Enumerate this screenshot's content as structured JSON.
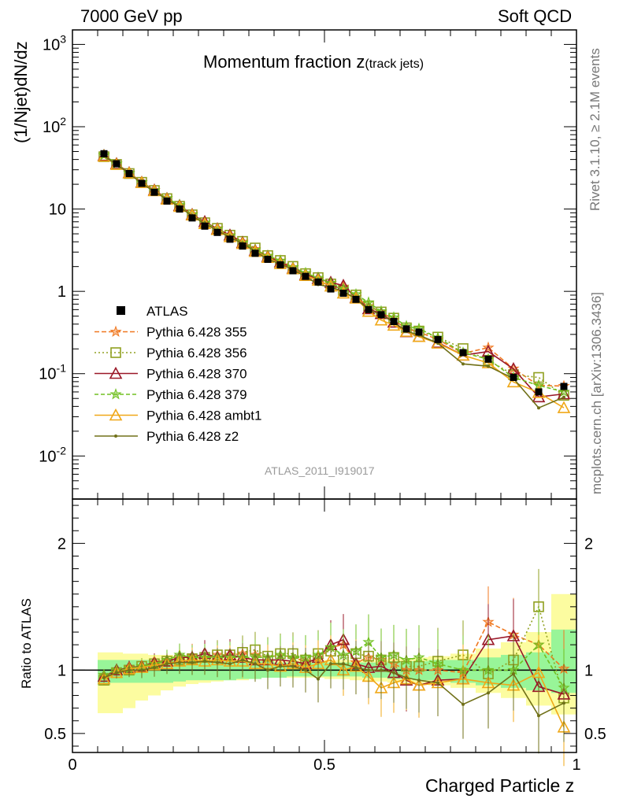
{
  "header": {
    "left": "7000 GeV pp",
    "right": "Soft QCD"
  },
  "side_text": {
    "rivet": "Rivet 3.1.10, ≥ 2.1M events",
    "mcplots": "mcplots.cern.ch [arXiv:1306.3436]"
  },
  "analysis_tag": "ATLAS_2011_I919017",
  "chart_data": {
    "type": "line",
    "title_main": "Momentum fraction z",
    "title_sub": "(track jets)",
    "ylabel": "(1/Njet)dN/dz",
    "ylabel_ratio": "Ratio to ATLAS",
    "xlabel": "Charged Particle z",
    "xlim": [
      0,
      1
    ],
    "ylim_main": [
      0.003,
      1500
    ],
    "ylim_ratio": [
      0.35,
      2.35
    ],
    "log_y_main": true,
    "x_ticks": [
      "0",
      "0.5",
      "1"
    ],
    "y_ticks_main": [
      "10^3",
      "10^2",
      "10",
      "1",
      "10^-1",
      "10^-2"
    ],
    "y_ticks_ratio": [
      "0.5",
      "1",
      "2"
    ],
    "legend_position": "bottom-left",
    "colors": {
      "data": "#000000",
      "band_inner": "#98f598",
      "band_outer": "#fcfca0"
    },
    "x": [
      0.0625,
      0.0875,
      0.1125,
      0.1375,
      0.1625,
      0.1875,
      0.2125,
      0.2375,
      0.2625,
      0.2875,
      0.3125,
      0.3375,
      0.3625,
      0.3875,
      0.4125,
      0.4375,
      0.4625,
      0.4875,
      0.5125,
      0.5375,
      0.5625,
      0.5875,
      0.6125,
      0.6375,
      0.6625,
      0.6875,
      0.725,
      0.775,
      0.825,
      0.875,
      0.925,
      0.975
    ],
    "data_values": [
      47,
      35.5,
      27,
      20.5,
      16,
      12.5,
      10,
      7.8,
      6.2,
      5.2,
      4.3,
      3.55,
      2.9,
      2.45,
      2.1,
      1.78,
      1.52,
      1.3,
      1.07,
      0.95,
      0.8,
      0.6,
      0.52,
      0.43,
      0.35,
      0.32,
      0.26,
      0.18,
      0.15,
      0.09,
      0.06,
      0.07
    ],
    "band_inner": [
      [
        0.88,
        1.08
      ],
      [
        0.9,
        1.08
      ],
      [
        0.9,
        1.08
      ],
      [
        0.9,
        1.08
      ],
      [
        0.9,
        1.08
      ],
      [
        0.9,
        1.08
      ],
      [
        0.91,
        1.08
      ],
      [
        0.92,
        1.08
      ],
      [
        0.92,
        1.08
      ],
      [
        0.92,
        1.08
      ],
      [
        0.92,
        1.07
      ],
      [
        0.93,
        1.07
      ],
      [
        0.93,
        1.07
      ],
      [
        0.94,
        1.07
      ],
      [
        0.94,
        1.06
      ],
      [
        0.95,
        1.06
      ],
      [
        0.95,
        1.06
      ],
      [
        0.95,
        1.06
      ],
      [
        0.95,
        1.06
      ],
      [
        0.95,
        1.06
      ],
      [
        0.95,
        1.06
      ],
      [
        0.94,
        1.06
      ],
      [
        0.94,
        1.06
      ],
      [
        0.93,
        1.07
      ],
      [
        0.93,
        1.07
      ],
      [
        0.92,
        1.07
      ],
      [
        0.92,
        1.08
      ],
      [
        0.9,
        1.08
      ],
      [
        0.88,
        1.1
      ],
      [
        0.86,
        1.12
      ],
      [
        0.84,
        1.14
      ],
      [
        0.82,
        1.32
      ]
    ],
    "band_outer": [
      [
        0.66,
        1.14
      ],
      [
        0.66,
        1.14
      ],
      [
        0.7,
        1.13
      ],
      [
        0.76,
        1.13
      ],
      [
        0.8,
        1.12
      ],
      [
        0.84,
        1.12
      ],
      [
        0.87,
        1.11
      ],
      [
        0.89,
        1.11
      ],
      [
        0.9,
        1.1
      ],
      [
        0.91,
        1.1
      ],
      [
        0.92,
        1.1
      ],
      [
        0.92,
        1.09
      ],
      [
        0.93,
        1.09
      ],
      [
        0.94,
        1.08
      ],
      [
        0.94,
        1.08
      ],
      [
        0.94,
        1.08
      ],
      [
        0.94,
        1.08
      ],
      [
        0.94,
        1.08
      ],
      [
        0.93,
        1.08
      ],
      [
        0.93,
        1.08
      ],
      [
        0.92,
        1.08
      ],
      [
        0.91,
        1.08
      ],
      [
        0.91,
        1.08
      ],
      [
        0.9,
        1.09
      ],
      [
        0.9,
        1.09
      ],
      [
        0.89,
        1.1
      ],
      [
        0.88,
        1.11
      ],
      [
        0.86,
        1.13
      ],
      [
        0.82,
        1.17
      ],
      [
        0.78,
        1.22
      ],
      [
        0.72,
        1.3
      ],
      [
        0.65,
        1.6
      ]
    ],
    "series": [
      {
        "name": "Pythia 6.428 355",
        "color": "#f07820",
        "dash": "6,3",
        "marker": "star",
        "ratio": [
          0.96,
          1.0,
          1.02,
          1.03,
          1.06,
          1.08,
          1.09,
          1.11,
          1.1,
          1.12,
          1.12,
          1.13,
          1.12,
          1.1,
          1.12,
          1.1,
          1.07,
          1.08,
          1.18,
          1.2,
          1.06,
          1.1,
          1.08,
          1.05,
          1.0,
          1.0,
          1.0,
          0.98,
          1.38,
          1.28,
          1.2,
          1.01
        ]
      },
      {
        "name": "Pythia 6.428 356",
        "color": "#90a020",
        "dash": "2,3",
        "marker": "square",
        "ratio": [
          0.92,
          0.98,
          1.0,
          1.03,
          1.05,
          1.07,
          1.08,
          1.09,
          1.1,
          1.12,
          1.12,
          1.14,
          1.16,
          1.11,
          1.13,
          1.13,
          1.08,
          1.13,
          1.15,
          1.08,
          1.13,
          1.11,
          1.08,
          1.1,
          1.03,
          1.03,
          1.07,
          1.12,
          0.97,
          1.08,
          1.5,
          0.78
        ]
      },
      {
        "name": "Pythia 6.428 370",
        "color": "#9a1828",
        "dash": "",
        "marker": "triangle",
        "ratio": [
          0.95,
          1.0,
          1.02,
          1.03,
          1.06,
          1.07,
          1.1,
          1.1,
          1.13,
          1.1,
          1.12,
          1.1,
          1.08,
          1.08,
          1.08,
          1.07,
          1.05,
          1.1,
          1.2,
          1.24,
          1.05,
          1.02,
          1.03,
          0.98,
          0.92,
          0.88,
          0.92,
          0.93,
          1.24,
          1.27,
          0.87,
          0.81
        ]
      },
      {
        "name": "Pythia 6.428 379",
        "color": "#70c020",
        "dash": "5,3",
        "marker": "star",
        "ratio": [
          0.96,
          1.0,
          1.01,
          1.03,
          1.05,
          1.08,
          1.12,
          1.1,
          1.1,
          1.1,
          1.1,
          1.1,
          1.1,
          1.1,
          1.12,
          1.1,
          1.1,
          1.12,
          1.18,
          1.12,
          1.15,
          1.22,
          1.1,
          1.12,
          1.08,
          1.1,
          1.05,
          1.0,
          1.0,
          1.0,
          1.2,
          0.86
        ]
      },
      {
        "name": "Pythia 6.428 ambt1",
        "color": "#f0a818",
        "dash": "",
        "marker": "triangle",
        "ratio": [
          0.93,
          0.98,
          1.01,
          1.02,
          1.04,
          1.05,
          1.07,
          1.08,
          1.07,
          1.08,
          1.07,
          1.07,
          1.05,
          1.05,
          1.03,
          1.05,
          1.02,
          1.05,
          1.08,
          1.0,
          1.03,
          0.95,
          0.86,
          0.9,
          0.93,
          0.88,
          0.9,
          0.93,
          0.9,
          0.88,
          0.98,
          0.55
        ]
      },
      {
        "name": "Pythia 6.428 z2",
        "color": "#707018",
        "dash": "",
        "marker": "dot",
        "ratio": [
          0.94,
          0.98,
          1.0,
          1.0,
          1.02,
          1.05,
          1.06,
          1.06,
          1.07,
          1.06,
          1.05,
          1.08,
          1.05,
          1.0,
          1.03,
          1.03,
          1.0,
          0.93,
          1.05,
          1.05,
          1.02,
          1.0,
          1.0,
          0.98,
          0.94,
          0.92,
          0.9,
          0.73,
          0.82,
          0.97,
          0.64,
          0.74
        ]
      }
    ]
  }
}
